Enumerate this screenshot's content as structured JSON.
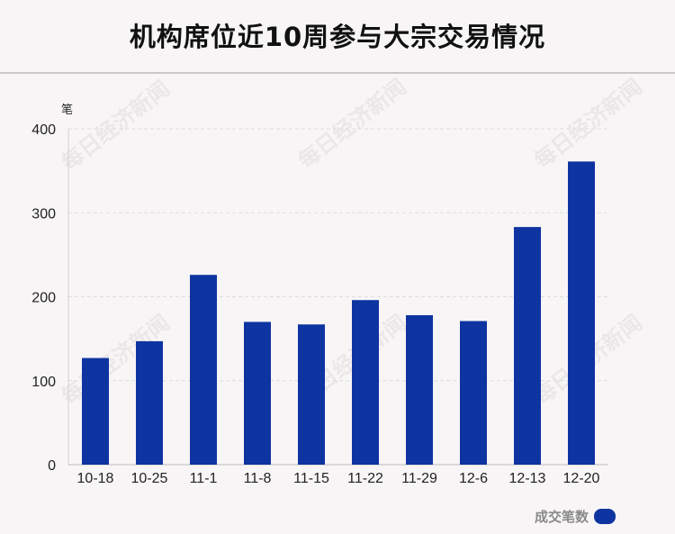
{
  "title": "机构席位近10周参与大宗交易情况",
  "watermark_text": "每日经济新闻",
  "chart_data": {
    "type": "bar",
    "categories": [
      "10-18",
      "10-25",
      "11-1",
      "11-8",
      "11-15",
      "11-22",
      "11-29",
      "12-6",
      "12-13",
      "12-20"
    ],
    "series": [
      {
        "name": "成交笔数",
        "values": [
          127,
          147,
          226,
          170,
          167,
          196,
          178,
          171,
          283,
          361
        ],
        "color": "#0d34a0"
      }
    ],
    "ylabel": "笔",
    "xlabel": "",
    "ylim": [
      0,
      400
    ],
    "yticks": [
      0,
      100,
      200,
      300,
      400
    ],
    "grid": true,
    "legend": "bottom-right"
  }
}
